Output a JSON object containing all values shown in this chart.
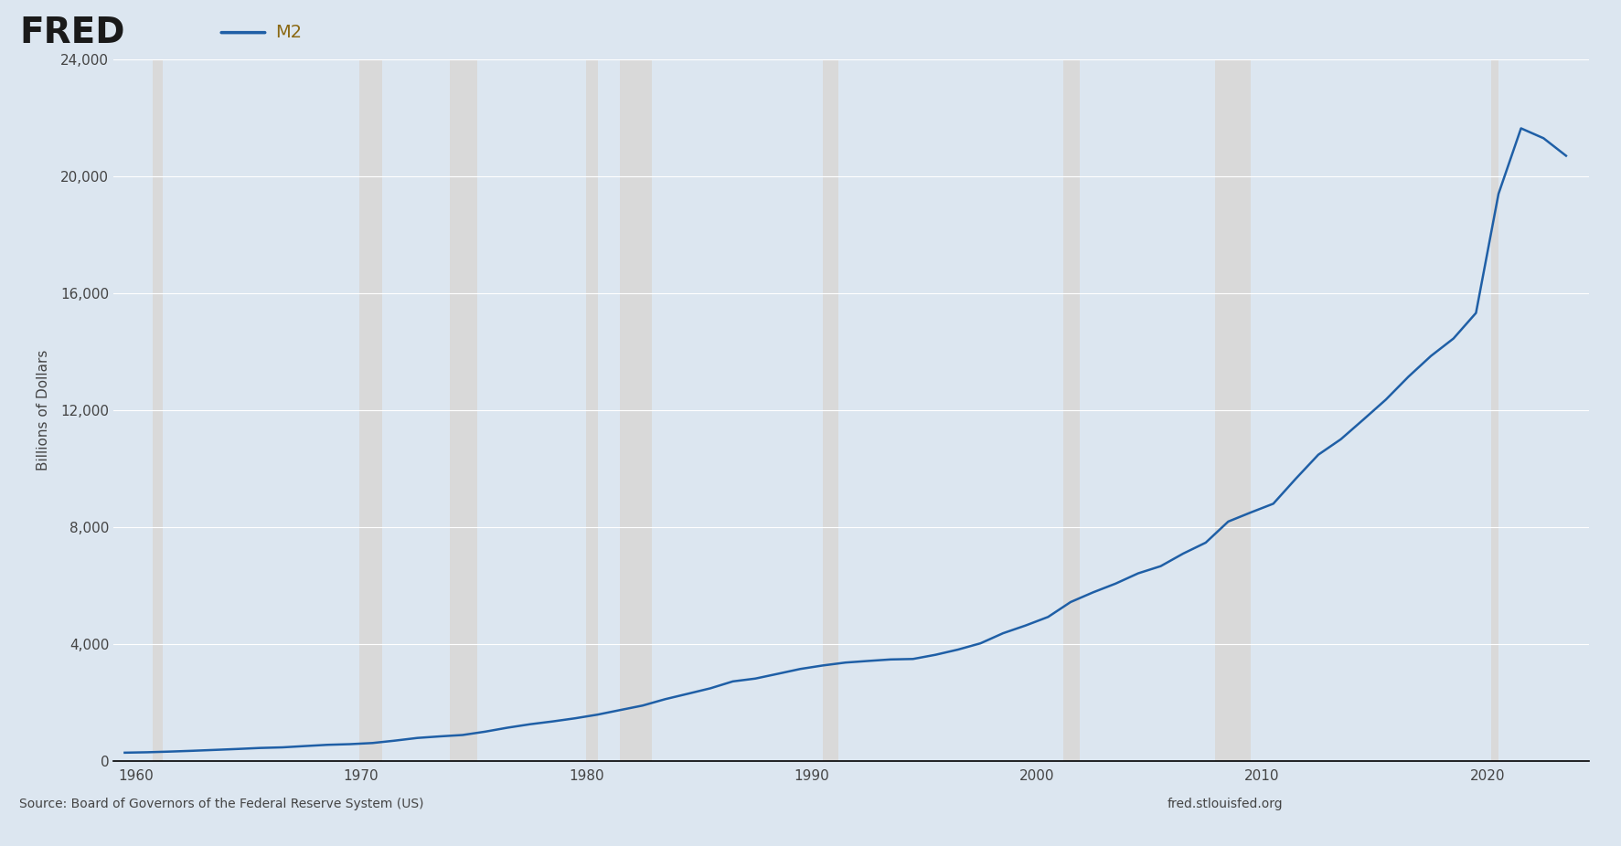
{
  "title": "M2",
  "ylabel": "Billions of Dollars",
  "source_left": "Source: Board of Governors of the Federal Reserve System (US)",
  "source_right": "fred.stlouisfed.org",
  "background_color": "#dce6f0",
  "plot_bg_color": "#dce6f0",
  "line_color": "#1f5fa6",
  "line_width": 1.8,
  "ylim": [
    0,
    24000
  ],
  "yticks": [
    0,
    4000,
    8000,
    12000,
    16000,
    20000,
    24000
  ],
  "recession_bands": [
    [
      1960.75,
      1961.17
    ],
    [
      1969.92,
      1970.92
    ],
    [
      1973.92,
      1975.17
    ],
    [
      1980.0,
      1980.5
    ],
    [
      1981.5,
      1982.92
    ],
    [
      1990.5,
      1991.17
    ],
    [
      2001.17,
      2001.92
    ],
    [
      2007.92,
      2009.5
    ],
    [
      2020.17,
      2020.5
    ]
  ],
  "recession_color": "#d9d9d9",
  "fred_text_color": "#1a1a1a",
  "legend_line_color": "#1f5fa6",
  "legend_text_color": "#8B6914",
  "data_years": [
    1959,
    1960,
    1961,
    1962,
    1963,
    1964,
    1965,
    1966,
    1967,
    1968,
    1969,
    1970,
    1971,
    1972,
    1973,
    1974,
    1975,
    1976,
    1977,
    1978,
    1979,
    1980,
    1981,
    1982,
    1983,
    1984,
    1985,
    1986,
    1987,
    1988,
    1989,
    1990,
    1991,
    1992,
    1993,
    1994,
    1995,
    1996,
    1997,
    1998,
    1999,
    2000,
    2001,
    2002,
    2003,
    2004,
    2005,
    2006,
    2007,
    2008,
    2009,
    2010,
    2011,
    2012,
    2013,
    2014,
    2015,
    2016,
    2017,
    2018,
    2019,
    2020,
    2021,
    2022,
    2023
  ],
  "data_values": [
    298.2,
    312.4,
    335.5,
    362.7,
    393.2,
    424.7,
    459.4,
    480.0,
    524.3,
    566.8,
    589.5,
    628.2,
    710.3,
    802.3,
    855.5,
    902.1,
    1016.2,
    1152.8,
    1270.5,
    1366.0,
    1473.7,
    1599.8,
    1755.5,
    1909.8,
    2127.4,
    2311.4,
    2497.3,
    2734.0,
    2831.0,
    2994.4,
    3159.9,
    3279.1,
    3378.2,
    3432.7,
    3484.5,
    3500.9,
    3644.0,
    3821.9,
    4036.6,
    4380.6,
    4644.8,
    4937.7,
    5446.3,
    5778.8,
    6077.7,
    6428.1,
    6673.4,
    7103.5,
    7477.5,
    8197.8,
    8508.9,
    8807.6,
    9663.2,
    10483.5,
    11011.5,
    11683.3,
    12366.7,
    13148.0,
    13857.0,
    14453.4,
    15327.3,
    19397.0,
    21638.4,
    21300.0,
    20700.0
  ],
  "xmin": 1959.0,
  "xmax": 2024.5
}
